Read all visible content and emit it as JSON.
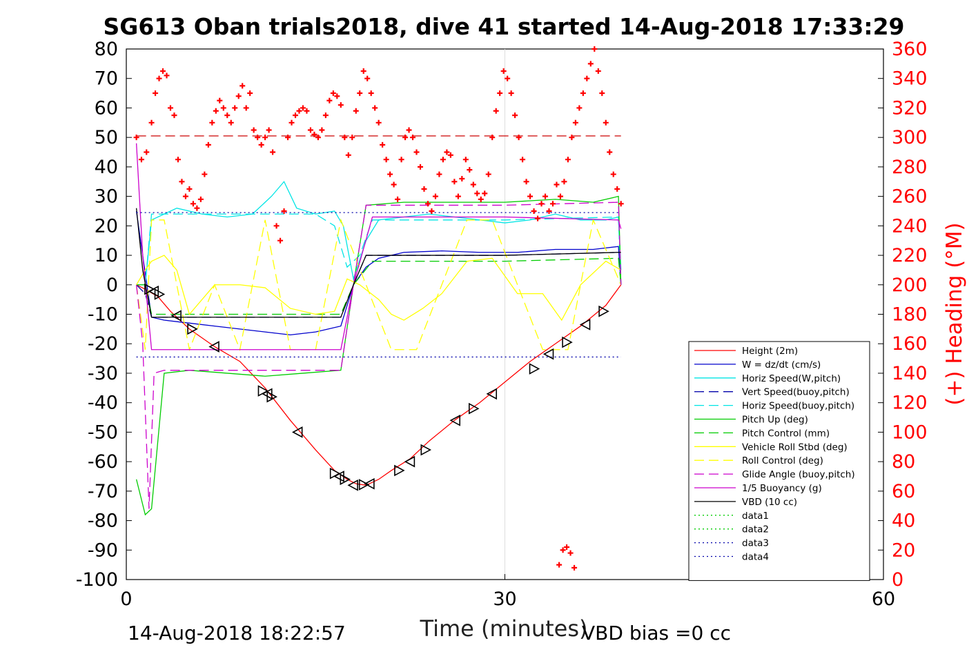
{
  "chart_data": {
    "type": "line",
    "title": "SG613 Oban trials2018, dive 41 started 14-Aug-2018 17:33:29",
    "xlabel": "Time (minutes)",
    "ylabel_left": "",
    "ylabel_right": "(+) Heading (°M)",
    "xlim": [
      0,
      60
    ],
    "ylim_left": [
      -100,
      80
    ],
    "ylim_right": [
      0,
      360
    ],
    "xticks": [
      "0",
      "30",
      "60"
    ],
    "yticks_left": [
      "-100",
      "-90",
      "-80",
      "-70",
      "-60",
      "-50",
      "-40",
      "-30",
      "-20",
      "-10",
      "0",
      "10",
      "20",
      "30",
      "40",
      "50",
      "60",
      "70",
      "80"
    ],
    "yticks_right": [
      "0",
      "20",
      "40",
      "60",
      "80",
      "100",
      "120",
      "140",
      "160",
      "180",
      "200",
      "220",
      "240",
      "260",
      "280",
      "300",
      "320",
      "340",
      "360"
    ],
    "grid": "x-major",
    "legend_position": "lower-right",
    "footer_left": "14-Aug-2018 18:22:57",
    "footer_right": "VBD bias =0 cc",
    "series": [
      {
        "name": "Height (2m)",
        "color": "#ff0000",
        "style": "solid",
        "x": [
          0.8,
          1.5,
          2.5,
          3.5,
          5,
          7,
          9,
          11,
          13,
          15,
          16.5,
          17.5,
          18.2,
          19,
          20,
          21,
          22.5,
          24,
          26,
          28,
          30,
          32,
          34,
          36,
          38,
          39.2
        ],
        "y": [
          0,
          -1.5,
          -4,
          -9,
          -15,
          -21,
          -26,
          -35,
          -46,
          -56,
          -63,
          -66,
          -67.5,
          -68,
          -66,
          -63,
          -59,
          -53,
          -46,
          -40,
          -33,
          -26,
          -20,
          -14,
          -7,
          0
        ]
      },
      {
        "name": "W = dz/dt (cm/s)",
        "color": "#0000cc",
        "style": "solid",
        "x": [
          0.8,
          1.3,
          2,
          3,
          5,
          7,
          9,
          11,
          13,
          15,
          17,
          18,
          19,
          20,
          22,
          25,
          28,
          31,
          34,
          37,
          39,
          39.2
        ],
        "y": [
          25,
          10,
          -11,
          -12,
          -13,
          -14,
          -15,
          -16,
          -17,
          -16,
          -14,
          0,
          6,
          9,
          11,
          11.5,
          11,
          11,
          12,
          12,
          13,
          0
        ]
      },
      {
        "name": "Horiz Speed(W,pitch)",
        "color": "#00e5e5",
        "style": "solid",
        "x": [
          0.8,
          1.5,
          2,
          3,
          4,
          6,
          8,
          10,
          11.5,
          12.5,
          13.5,
          15,
          16.5,
          17.2,
          18,
          19,
          20,
          22,
          24,
          26,
          28,
          30,
          32,
          34,
          36,
          38,
          39,
          39.2
        ],
        "y": [
          0,
          0,
          22,
          24,
          26,
          24,
          23,
          24,
          30,
          35,
          26,
          24,
          25,
          20,
          2,
          15,
          22,
          23,
          24,
          23,
          22,
          21,
          22,
          24,
          22,
          22,
          23,
          5
        ]
      },
      {
        "name": "Vert Speed(buoy,pitch)",
        "color": "#0000aa",
        "style": "dashed",
        "x": [
          0.8,
          1.5,
          2,
          10,
          17,
          18,
          19,
          30,
          39,
          39.2
        ],
        "y": [
          0,
          -3,
          -11,
          -11,
          -11,
          0,
          10,
          10,
          11,
          0
        ]
      },
      {
        "name": "Horiz Speed(buoy,pitch)",
        "color": "#00e5e5",
        "style": "dashed",
        "x": [
          0.8,
          1.5,
          2,
          10,
          15,
          16.5,
          17.5,
          18.5,
          19.5,
          30,
          39,
          39.2
        ],
        "y": [
          0,
          0,
          24,
          24,
          24,
          20,
          6,
          10,
          22,
          22,
          23,
          0
        ]
      },
      {
        "name": "Pitch Up (deg)",
        "color": "#00cc00",
        "style": "solid",
        "x": [
          0.8,
          1.5,
          2,
          3,
          5,
          8,
          11,
          14,
          17,
          18,
          19,
          22,
          26,
          30,
          34,
          37,
          39,
          39.2
        ],
        "y": [
          -66,
          -78,
          -76,
          -30,
          -29,
          -30,
          -31,
          -30,
          -29,
          0,
          27,
          28,
          28,
          28,
          29,
          28,
          30,
          0
        ]
      },
      {
        "name": "Pitch Control (mm)",
        "color": "#00cc00",
        "style": "dashed",
        "x": [
          0.8,
          1.5,
          2,
          10,
          17,
          18,
          19.5,
          30,
          39,
          39.2
        ],
        "y": [
          0,
          0,
          -10,
          -10,
          -10,
          0,
          8,
          8,
          9,
          0
        ]
      },
      {
        "name": "Vehicle Roll Stbd (deg)",
        "color": "#ffff00",
        "style": "solid",
        "x": [
          0.8,
          1.5,
          2,
          3,
          4,
          5,
          7,
          9,
          11,
          13,
          15,
          16.5,
          17.5,
          18.5,
          20,
          21,
          22,
          23.5,
          25,
          27,
          29,
          31,
          33,
          34.5,
          36,
          38,
          39.2
        ],
        "y": [
          0,
          5,
          8,
          10,
          5,
          -10,
          0,
          0,
          -1,
          -8,
          -10,
          -9,
          2,
          0,
          -5,
          -10,
          -12,
          -8,
          -3,
          8,
          9,
          -3,
          -3,
          -12,
          0,
          8,
          5
        ]
      },
      {
        "name": "Roll Control (deg)",
        "color": "#ffff00",
        "style": "dashed",
        "x": [
          0.8,
          1.5,
          2,
          3,
          5,
          7,
          9,
          11,
          13,
          15,
          17,
          19,
          21,
          23,
          25,
          27,
          29,
          31,
          33,
          35,
          37,
          39.2
        ],
        "y": [
          0,
          -22,
          22,
          22,
          -22,
          0,
          -22,
          22,
          -22,
          -22,
          22,
          0,
          -22,
          -22,
          0,
          22,
          22,
          0,
          -22,
          -22,
          22,
          0
        ]
      },
      {
        "name": "Glide Angle (buoy,pitch)",
        "color": "#cc00cc",
        "style": "dashed",
        "x": [
          0.8,
          1.3,
          1.8,
          2.2,
          3,
          10,
          17,
          18,
          19,
          30,
          39,
          39.2
        ],
        "y": [
          0,
          -20,
          -76,
          -30,
          -29,
          -29,
          -29,
          0,
          27,
          27,
          28,
          0
        ]
      },
      {
        "name": "1/5 Buoyancy (g)",
        "color": "#cc00cc",
        "style": "solid",
        "x": [
          0.8,
          1.3,
          2,
          10,
          17,
          18,
          19.5,
          30,
          39,
          39.2
        ],
        "y": [
          48,
          10,
          -22,
          -22,
          -22,
          0,
          23,
          23,
          22,
          19
        ]
      },
      {
        "name": "VBD (10 cc)",
        "color": "#000000",
        "style": "solid",
        "x": [
          0.8,
          1.3,
          2,
          10,
          17,
          18,
          19,
          30,
          39,
          39.2
        ],
        "y": [
          26,
          5,
          -11,
          -11,
          -11,
          0,
          10,
          10,
          11,
          11
        ]
      },
      {
        "name": "data1",
        "color": "#00cc00",
        "style": "dotted",
        "x": [],
        "y": []
      },
      {
        "name": "data2",
        "color": "#00cc00",
        "style": "dotted",
        "x": [],
        "y": []
      },
      {
        "name": "data3",
        "color": "#0000aa",
        "style": "dotted",
        "x": [
          0.8,
          39.2
        ],
        "y": [
          24.5,
          24.5
        ]
      },
      {
        "name": "data4",
        "color": "#0000aa",
        "style": "dotted",
        "x": [
          0.8,
          39.2
        ],
        "y": [
          -24.5,
          -24.5
        ]
      }
    ],
    "reference_lines": [
      {
        "axis": "right",
        "color": "#cc0000",
        "style": "dashed",
        "x": [
          0.8,
          39.2
        ],
        "y": [
          301,
          301
        ]
      }
    ],
    "heading": {
      "color": "#ff0000",
      "marker": "plus",
      "axis": "right",
      "x": [
        0.8,
        1.2,
        1.6,
        2,
        2.3,
        2.6,
        2.9,
        3.2,
        3.5,
        3.8,
        4.1,
        4.4,
        4.7,
        5,
        5.3,
        5.6,
        5.9,
        6.2,
        6.5,
        6.8,
        7.1,
        7.4,
        7.7,
        8,
        8.3,
        8.6,
        8.9,
        9.2,
        9.5,
        9.8,
        10.1,
        10.4,
        10.7,
        11,
        11.3,
        11.6,
        11.9,
        12.2,
        12.5,
        12.8,
        13.1,
        13.4,
        13.7,
        14,
        14.3,
        14.6,
        14.9,
        15.2,
        15.5,
        15.8,
        16.1,
        16.4,
        16.7,
        17,
        17.3,
        17.6,
        17.9,
        18.2,
        18.5,
        18.8,
        19.1,
        19.4,
        19.7,
        20,
        20.3,
        20.6,
        20.9,
        21.2,
        21.5,
        21.8,
        22.1,
        22.4,
        22.7,
        23,
        23.3,
        23.6,
        23.9,
        24.2,
        24.5,
        24.8,
        25.1,
        25.4,
        25.7,
        26,
        26.3,
        26.6,
        26.9,
        27.2,
        27.5,
        27.8,
        28.1,
        28.4,
        28.7,
        29,
        29.3,
        29.6,
        29.9,
        30.2,
        30.5,
        30.8,
        31.1,
        31.4,
        31.7,
        32,
        32.3,
        32.6,
        32.9,
        33.2,
        33.5,
        33.8,
        34.1,
        34.4,
        34.7,
        35,
        35.3,
        35.6,
        35.9,
        36.2,
        36.5,
        36.8,
        37.1,
        37.4,
        37.7,
        38,
        38.3,
        38.6,
        38.9,
        39.2
      ],
      "y": [
        300,
        285,
        290,
        310,
        330,
        340,
        345,
        342,
        320,
        315,
        285,
        270,
        260,
        265,
        255,
        252,
        258,
        275,
        295,
        310,
        318,
        325,
        320,
        315,
        310,
        320,
        328,
        335,
        320,
        330,
        305,
        300,
        295,
        300,
        305,
        290,
        240,
        230,
        250,
        300,
        310,
        315,
        318,
        320,
        318,
        305,
        302,
        300,
        305,
        315,
        325,
        330,
        328,
        322,
        300,
        288,
        300,
        318,
        330,
        345,
        340,
        330,
        320,
        310,
        295,
        285,
        275,
        268,
        258,
        285,
        300,
        305,
        300,
        290,
        280,
        265,
        255,
        250,
        260,
        275,
        285,
        290,
        288,
        270,
        260,
        272,
        285,
        278,
        268,
        262,
        258,
        262,
        275,
        300,
        318,
        330,
        345,
        340,
        330,
        315,
        300,
        285,
        270,
        260,
        250,
        245,
        255,
        260,
        250,
        255,
        268,
        260,
        270,
        285,
        300,
        310,
        320,
        330,
        340,
        350,
        360,
        345,
        330,
        310,
        290,
        275,
        265,
        255
      ],
      "x_low": [
        34.3,
        34.6,
        34.9,
        35.2,
        35.5
      ],
      "y_low": [
        10,
        20,
        22,
        18,
        8
      ]
    },
    "markers": {
      "color": "#000000",
      "symbol": "triangle",
      "x": [
        1.8,
        2.2,
        2.6,
        4.0,
        5.2,
        7.0,
        10.8,
        11.2,
        11.5,
        13.6,
        16.5,
        16.9,
        17.3,
        18.0,
        18.8,
        19.3,
        21.6,
        22.5,
        23.7,
        26.1,
        27.5,
        29.0,
        32.3,
        33.5,
        34.9,
        36.4,
        37.8
      ],
      "y": [
        -1.5,
        -2.2,
        -3.2,
        -10.5,
        -15,
        -21,
        -36,
        -37,
        -38,
        -50,
        -64,
        -65,
        -66,
        -68,
        -67.8,
        -67.5,
        -63,
        -60,
        -56,
        -46,
        -42,
        -37,
        -28.5,
        -23.5,
        -19.5,
        -13.5,
        -9
      ]
    }
  }
}
